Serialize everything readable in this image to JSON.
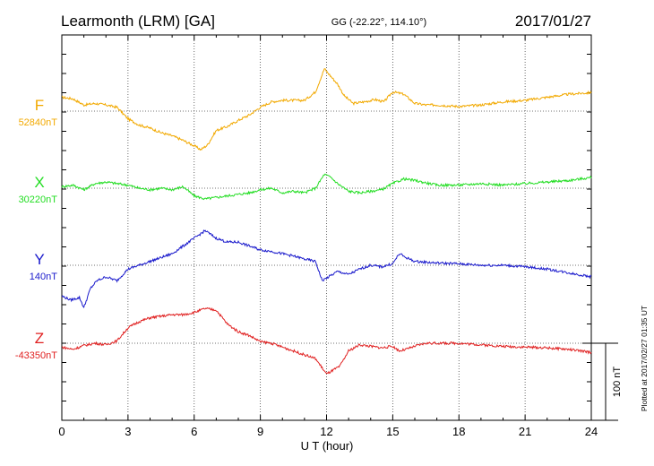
{
  "header": {
    "station": "Learmonth (LRM)  [GA]",
    "coords": "GG (-22.22°, 114.10°)",
    "date": "2017/01/27"
  },
  "footer": {
    "plotted": "Plotted at 2017/02/27 01:35 UT"
  },
  "chart_data": {
    "type": "line",
    "title": "Learmonth (LRM)  [GA]",
    "xlabel": "U T (hour)",
    "ylabel": "",
    "xlim": [
      0,
      24
    ],
    "xticks": [
      0,
      3,
      6,
      9,
      12,
      15,
      18,
      21,
      24
    ],
    "grid": true,
    "scale_bar": {
      "label": "100 nT",
      "value_nT": 100
    },
    "series": [
      {
        "name": "F",
        "baseline": "52840nT",
        "baseline_nT": 52840,
        "color": "#f2a900",
        "x": [
          0,
          0.5,
          1,
          1.5,
          2,
          2.5,
          3,
          3.5,
          4,
          4.5,
          5,
          5.5,
          6,
          6.3,
          6.6,
          7,
          7.5,
          8,
          8.5,
          9,
          9.5,
          10,
          10.5,
          11,
          11.5,
          11.9,
          12.2,
          12.5,
          12.8,
          13.2,
          13.7,
          14.2,
          14.6,
          15,
          15.5,
          16,
          16.5,
          17,
          18,
          19,
          20,
          21,
          22,
          23,
          24
        ],
        "y": [
          18,
          16,
          8,
          10,
          8,
          5,
          -10,
          -18,
          -22,
          -28,
          -32,
          -38,
          -45,
          -50,
          -44,
          -25,
          -20,
          -12,
          -5,
          5,
          12,
          14,
          14,
          14,
          25,
          55,
          45,
          35,
          20,
          10,
          12,
          15,
          12,
          25,
          22,
          10,
          8,
          8,
          6,
          8,
          12,
          14,
          18,
          22,
          24
        ]
      },
      {
        "name": "X",
        "baseline": "30220nT",
        "baseline_nT": 30220,
        "color": "#22dd22",
        "x": [
          0,
          0.5,
          1,
          1.5,
          2,
          2.5,
          3,
          3.5,
          4,
          4.5,
          5,
          5.5,
          6,
          6.5,
          7,
          7.5,
          8,
          8.5,
          9,
          9.5,
          10,
          10.5,
          11,
          11.5,
          11.9,
          12.2,
          12.5,
          13,
          13.5,
          14,
          14.5,
          15,
          15.5,
          16,
          17,
          18,
          19,
          20,
          21,
          22,
          23,
          24
        ],
        "y": [
          2,
          4,
          -2,
          6,
          8,
          6,
          4,
          0,
          -2,
          0,
          -2,
          2,
          -10,
          -14,
          -12,
          -10,
          -8,
          -6,
          -2,
          0,
          -6,
          -4,
          -6,
          0,
          18,
          14,
          6,
          -4,
          -6,
          -4,
          -2,
          6,
          12,
          10,
          4,
          4,
          6,
          4,
          6,
          8,
          10,
          14
        ]
      },
      {
        "name": "Y",
        "baseline": "140nT",
        "baseline_nT": 140,
        "color": "#1a1acc",
        "x": [
          0,
          0.4,
          0.8,
          1,
          1.3,
          1.6,
          2,
          2.5,
          3,
          3.5,
          4,
          4.5,
          5,
          5.5,
          6,
          6.5,
          7,
          7.5,
          8,
          8.5,
          9,
          9.5,
          10,
          10.5,
          11,
          11.5,
          11.8,
          12.1,
          12.5,
          13,
          13.5,
          14,
          14.5,
          15,
          15.3,
          15.6,
          16,
          17,
          18,
          19,
          20,
          21,
          22,
          23,
          24
        ],
        "y": [
          -40,
          -45,
          -42,
          -55,
          -30,
          -20,
          -15,
          -20,
          -5,
          0,
          5,
          10,
          15,
          25,
          35,
          45,
          35,
          30,
          30,
          25,
          20,
          18,
          15,
          12,
          8,
          5,
          -20,
          -15,
          -8,
          -12,
          -5,
          0,
          -2,
          2,
          15,
          10,
          5,
          3,
          2,
          0,
          0,
          -2,
          -5,
          -10,
          -15
        ]
      },
      {
        "name": "Z",
        "baseline": "-43350nT",
        "baseline_nT": -43350,
        "color": "#e02020",
        "x": [
          0,
          0.5,
          1,
          1.5,
          2,
          2.5,
          3,
          3.5,
          4,
          4.5,
          5,
          5.5,
          6,
          6.5,
          7,
          7.5,
          8,
          8.5,
          9,
          9.5,
          10,
          10.5,
          11,
          11.5,
          12,
          12.3,
          12.6,
          13,
          13.5,
          14,
          14.5,
          15,
          15.3,
          15.6,
          16,
          16.5,
          17,
          18,
          19,
          20,
          21,
          22,
          23,
          24
        ],
        "y": [
          -5,
          -8,
          -3,
          0,
          -2,
          3,
          20,
          28,
          33,
          35,
          37,
          37,
          40,
          45,
          43,
          25,
          15,
          10,
          2,
          0,
          -5,
          -10,
          -15,
          -20,
          -40,
          -35,
          -30,
          -10,
          -2,
          -4,
          -6,
          -4,
          -10,
          -8,
          -4,
          0,
          0,
          0,
          -2,
          -4,
          -5,
          -6,
          -8,
          -12
        ]
      }
    ]
  }
}
